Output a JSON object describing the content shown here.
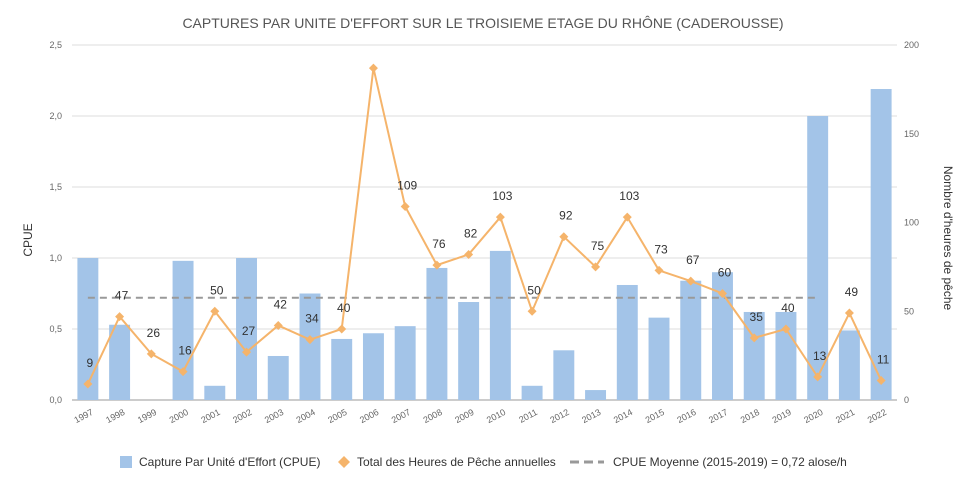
{
  "chart_data": {
    "type": "bar",
    "title": "CAPTURES PAR UNITE D'EFFORT SUR LE TROISIEME ETAGE DU RHÔNE (CADEROUSSE)",
    "categories": [
      "1997",
      "1998",
      "1999",
      "2000",
      "2001",
      "2002",
      "2003",
      "2004",
      "2005",
      "2006",
      "2007",
      "2008",
      "2009",
      "2010",
      "2011",
      "2012",
      "2013",
      "2014",
      "2015",
      "2016",
      "2017",
      "2018",
      "2019",
      "2020",
      "2021",
      "2022"
    ],
    "ylabel": "CPUE",
    "y2label": "Nombre d'heures de pêche",
    "ylim": [
      0,
      2.5
    ],
    "y2lim": [
      0,
      200
    ],
    "yticks": [
      "0,0",
      "0,5",
      "1,0",
      "1,5",
      "2,0",
      "2,5"
    ],
    "y2ticks": [
      "0",
      "50",
      "100",
      "150",
      "200"
    ],
    "grid": true,
    "legend_position": "bottom",
    "series": [
      {
        "name": "Capture Par Unité d'Effort (CPUE)",
        "type": "bar",
        "axis": "left",
        "color": "#a3c4e8",
        "values": [
          1.0,
          0.53,
          0,
          0.98,
          0.1,
          1.0,
          0.31,
          0.75,
          0.43,
          0.47,
          0.52,
          0.93,
          0.69,
          1.05,
          0.1,
          0.35,
          0.07,
          0.81,
          0.58,
          0.84,
          0.9,
          0.62,
          0.62,
          2.0,
          0.49,
          2.19
        ]
      },
      {
        "name": "Total des Heures de Pêche annuelles",
        "type": "line",
        "axis": "right",
        "color": "#f5b46b",
        "values": [
          9,
          47,
          26,
          16,
          50,
          27,
          42,
          34,
          40,
          187,
          109,
          76,
          82,
          103,
          50,
          92,
          75,
          103,
          73,
          67,
          60,
          35,
          40,
          13,
          49,
          11
        ],
        "labels": [
          "9",
          "47",
          "26",
          "16",
          "50",
          "27",
          "42",
          "34",
          "40",
          "",
          "109",
          "76",
          "82",
          "103",
          "50",
          "92",
          "75",
          "103",
          "73",
          "67",
          "60",
          "35",
          "40",
          "13",
          "49",
          "11"
        ]
      },
      {
        "name": "CPUE Moyenne (2015-2019) = 0,72 alose/h",
        "type": "line",
        "style": "dashed",
        "axis": "left",
        "color": "#999999",
        "value": 0.72,
        "x_range": [
          "1997",
          "2020"
        ]
      }
    ]
  }
}
